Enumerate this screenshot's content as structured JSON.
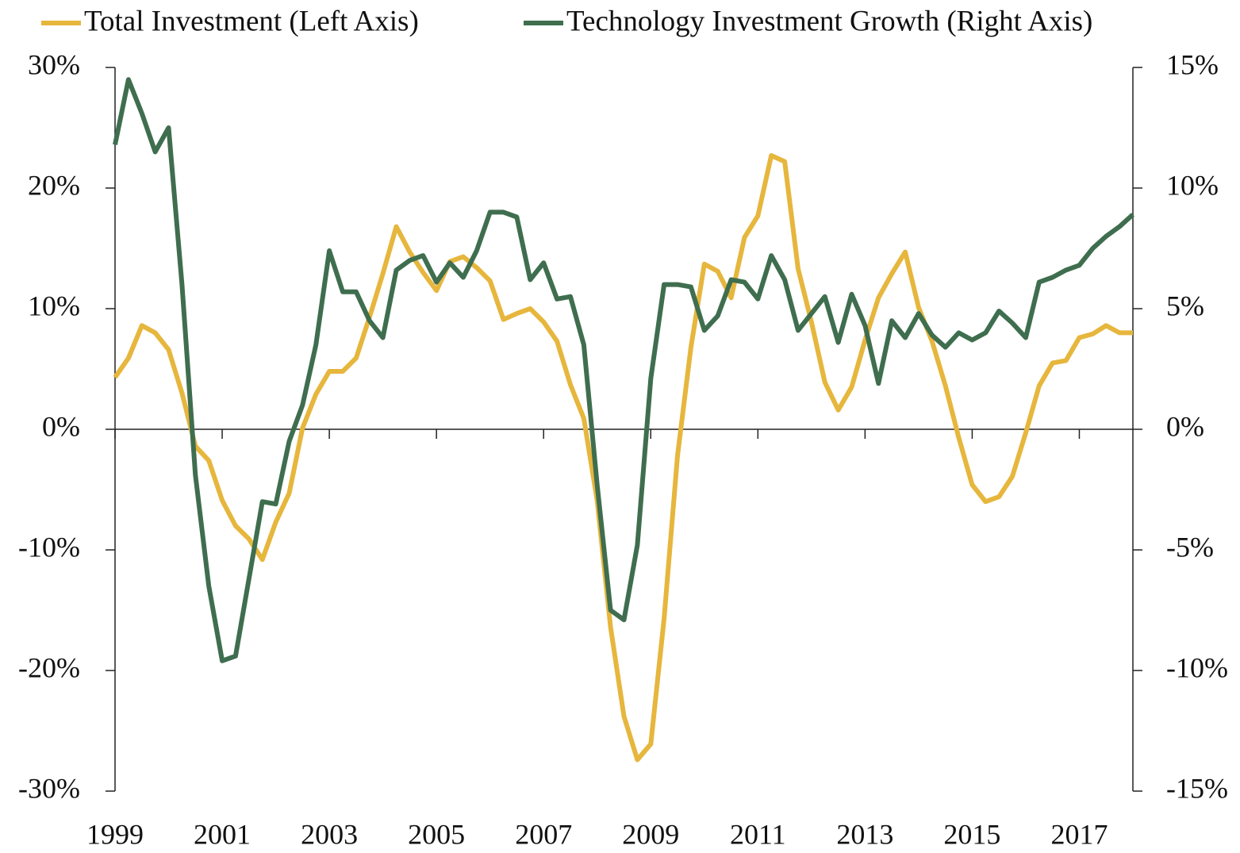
{
  "chart_data": {
    "type": "line",
    "x": [
      1999,
      1999.25,
      1999.5,
      1999.75,
      2000,
      2000.25,
      2000.5,
      2000.75,
      2001,
      2001.25,
      2001.5,
      2001.75,
      2002,
      2002.25,
      2002.5,
      2002.75,
      2003,
      2003.25,
      2003.5,
      2003.75,
      2004,
      2004.25,
      2004.5,
      2004.75,
      2005,
      2005.25,
      2005.5,
      2005.75,
      2006,
      2006.25,
      2006.5,
      2006.75,
      2007,
      2007.25,
      2007.5,
      2007.75,
      2008,
      2008.25,
      2008.5,
      2008.75,
      2009,
      2009.25,
      2009.5,
      2009.75,
      2010,
      2010.25,
      2010.5,
      2010.75,
      2011,
      2011.25,
      2011.5,
      2011.75,
      2012,
      2012.25,
      2012.5,
      2012.75,
      2013,
      2013.25,
      2013.5,
      2013.75,
      2014,
      2014.25,
      2014.5,
      2014.75,
      2015,
      2015.25,
      2015.5,
      2015.75,
      2016,
      2016.25,
      2016.5,
      2016.75,
      2017,
      2017.25,
      2017.5,
      2017.75,
      2018
    ],
    "series": [
      {
        "name": "Total Investment (Left Axis)",
        "color": "#e6b63d",
        "axis": "y",
        "values": [
          4.3,
          5.9,
          8.6,
          8.0,
          6.6,
          3.0,
          -1.4,
          -2.6,
          -5.9,
          -8.0,
          -9.1,
          -10.8,
          -7.7,
          -5.3,
          0.1,
          2.9,
          4.8,
          4.8,
          5.9,
          9.3,
          12.9,
          16.8,
          14.7,
          13.0,
          11.5,
          13.9,
          14.3,
          13.4,
          12.3,
          9.1,
          9.6,
          10.0,
          8.9,
          7.3,
          3.7,
          0.9,
          -5.9,
          -16.4,
          -23.8,
          -27.4,
          -26.1,
          -15.7,
          -2.2,
          6.8,
          13.7,
          13.1,
          10.9,
          15.9,
          17.7,
          22.7,
          22.2,
          13.3,
          8.9,
          3.9,
          1.6,
          3.5,
          7.4,
          10.9,
          12.9,
          14.7,
          10.1,
          7.3,
          3.6,
          -0.7,
          -4.6,
          -6.0,
          -5.6,
          -3.9,
          -0.3,
          3.6,
          5.5,
          5.7,
          7.6,
          7.9,
          8.6,
          8.0,
          8.0
        ]
      },
      {
        "name": "Technology Investment Growth (Right Axis)",
        "color": "#3f6e4f",
        "axis": "y2",
        "values": [
          11.8,
          14.5,
          13.1,
          11.5,
          12.5,
          6.0,
          -1.9,
          -6.5,
          -9.6,
          -9.4,
          -6.2,
          -3.0,
          -3.1,
          -0.5,
          1.0,
          3.5,
          7.4,
          5.7,
          5.7,
          4.5,
          3.8,
          6.6,
          7.0,
          7.2,
          6.1,
          6.9,
          6.3,
          7.4,
          9.0,
          9.0,
          8.8,
          6.2,
          6.9,
          5.4,
          5.5,
          3.5,
          -2.3,
          -7.5,
          -7.9,
          -4.8,
          2.1,
          6.0,
          6.0,
          5.9,
          4.1,
          4.7,
          6.2,
          6.1,
          5.4,
          7.2,
          6.2,
          4.1,
          4.8,
          5.5,
          3.6,
          5.6,
          4.3,
          1.9,
          4.5,
          3.8,
          4.8,
          3.9,
          3.4,
          4.0,
          3.7,
          4.0,
          4.9,
          4.4,
          3.8,
          6.1,
          6.3,
          6.6,
          6.8,
          7.5,
          8.0,
          8.4,
          8.9
        ]
      }
    ],
    "xlim": [
      1999,
      2018
    ],
    "xticks": [
      1999,
      2001,
      2003,
      2005,
      2007,
      2009,
      2011,
      2013,
      2015,
      2017
    ],
    "ylim": [
      -30,
      30
    ],
    "yticks": [
      {
        "value": 30,
        "label": "30%"
      },
      {
        "value": 20,
        "label": "20%"
      },
      {
        "value": 10,
        "label": "10%"
      },
      {
        "value": 0,
        "label": "0%"
      },
      {
        "value": -10,
        "label": "-10%"
      },
      {
        "value": -20,
        "label": "-20%"
      },
      {
        "value": -30,
        "label": "-30%"
      }
    ],
    "y2lim": [
      -15,
      15
    ],
    "y2ticks": [
      {
        "value": 15,
        "label": "15%"
      },
      {
        "value": 10,
        "label": "10%"
      },
      {
        "value": 5,
        "label": "5%"
      },
      {
        "value": 0,
        "label": "0%"
      },
      {
        "value": -5,
        "label": "-5%"
      },
      {
        "value": -10,
        "label": "-10%"
      },
      {
        "value": -15,
        "label": "-15%"
      }
    ],
    "legend": "top"
  }
}
